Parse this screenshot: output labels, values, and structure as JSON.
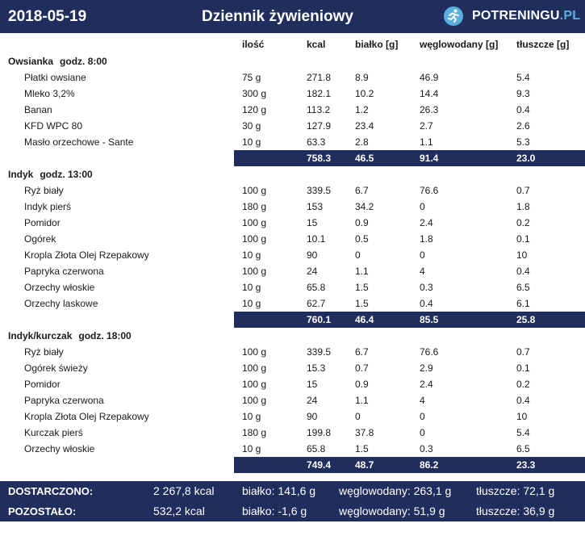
{
  "header": {
    "date": "2018-05-19",
    "title": "Dziennik żywieniowy",
    "logo_main": "POTRENINGU",
    "logo_suffix": ".PL"
  },
  "columns": [
    "ilość",
    "kcal",
    "białko [g]",
    "węglowodany [g]",
    "tłuszcze [g]"
  ],
  "meals": [
    {
      "name": "Owsianka",
      "time": "godz. 8:00",
      "items": [
        {
          "name": "Płatki owsiane",
          "qty": "75 g",
          "kcal": "271.8",
          "protein": "8.9",
          "carbs": "46.9",
          "fat": "5.4"
        },
        {
          "name": "Mleko  3,2%",
          "qty": "300 g",
          "kcal": "182.1",
          "protein": "10.2",
          "carbs": "14.4",
          "fat": "9.3"
        },
        {
          "name": "Banan",
          "qty": "120 g",
          "kcal": "113.2",
          "protein": "1.2",
          "carbs": "26.3",
          "fat": "0.4"
        },
        {
          "name": "KFD WPC 80",
          "qty": "30 g",
          "kcal": "127.9",
          "protein": "23.4",
          "carbs": "2.7",
          "fat": "2.6"
        },
        {
          "name": "Masło orzechowe - Sante",
          "qty": "10 g",
          "kcal": "63.3",
          "protein": "2.8",
          "carbs": "1.1",
          "fat": "5.3"
        }
      ],
      "totals": {
        "kcal": "758.3",
        "protein": "46.5",
        "carbs": "91.4",
        "fat": "23.0"
      }
    },
    {
      "name": "Indyk",
      "time": "godz. 13:00",
      "items": [
        {
          "name": "Ryż biały",
          "qty": "100 g",
          "kcal": "339.5",
          "protein": "6.7",
          "carbs": "76.6",
          "fat": "0.7"
        },
        {
          "name": "Indyk pierś",
          "qty": "180 g",
          "kcal": "153",
          "protein": "34.2",
          "carbs": "0",
          "fat": "1.8"
        },
        {
          "name": "Pomidor",
          "qty": "100 g",
          "kcal": "15",
          "protein": "0.9",
          "carbs": "2.4",
          "fat": "0.2"
        },
        {
          "name": "Ogórek",
          "qty": "100 g",
          "kcal": "10.1",
          "protein": "0.5",
          "carbs": "1.8",
          "fat": "0.1"
        },
        {
          "name": "Kropla Złota Olej Rzepakowy",
          "qty": "10 g",
          "kcal": "90",
          "protein": "0",
          "carbs": "0",
          "fat": "10"
        },
        {
          "name": "Papryka czerwona",
          "qty": "100 g",
          "kcal": "24",
          "protein": "1.1",
          "carbs": "4",
          "fat": "0.4"
        },
        {
          "name": "Orzechy włoskie",
          "qty": "10 g",
          "kcal": "65.8",
          "protein": "1.5",
          "carbs": "0.3",
          "fat": "6.5"
        },
        {
          "name": "Orzechy laskowe",
          "qty": "10 g",
          "kcal": "62.7",
          "protein": "1.5",
          "carbs": "0.4",
          "fat": "6.1"
        }
      ],
      "totals": {
        "kcal": "760.1",
        "protein": "46.4",
        "carbs": "85.5",
        "fat": "25.8"
      }
    },
    {
      "name": "Indyk/kurczak",
      "time": "godz. 18:00",
      "items": [
        {
          "name": "Ryż biały",
          "qty": "100 g",
          "kcal": "339.5",
          "protein": "6.7",
          "carbs": "76.6",
          "fat": "0.7"
        },
        {
          "name": "Ogórek świeży",
          "qty": "100 g",
          "kcal": "15.3",
          "protein": "0.7",
          "carbs": "2.9",
          "fat": "0.1"
        },
        {
          "name": "Pomidor",
          "qty": "100 g",
          "kcal": "15",
          "protein": "0.9",
          "carbs": "2.4",
          "fat": "0.2"
        },
        {
          "name": "Papryka czerwona",
          "qty": "100 g",
          "kcal": "24",
          "protein": "1.1",
          "carbs": "4",
          "fat": "0.4"
        },
        {
          "name": "Kropla Złota Olej Rzepakowy",
          "qty": "10 g",
          "kcal": "90",
          "protein": "0",
          "carbs": "0",
          "fat": "10"
        },
        {
          "name": "Kurczak pierś",
          "qty": "180 g",
          "kcal": "199.8",
          "protein": "37.8",
          "carbs": "0",
          "fat": "5.4"
        },
        {
          "name": "Orzechy włoskie",
          "qty": "10 g",
          "kcal": "65.8",
          "protein": "1.5",
          "carbs": "0.3",
          "fat": "6.5"
        }
      ],
      "totals": {
        "kcal": "749.4",
        "protein": "48.7",
        "carbs": "86.2",
        "fat": "23.3"
      }
    }
  ],
  "summary": [
    {
      "label": "DOSTARCZONO:",
      "kcal": "2 267,8 kcal",
      "protein": "białko: 141,6 g",
      "carbs": "węglowodany: 263,1 g",
      "fat": "tłuszcze: 72,1 g"
    },
    {
      "label": "POZOSTAŁO:",
      "kcal": "532,2 kcal",
      "protein": "białko: -1,6 g",
      "carbs": "węglowodany: 51,9 g",
      "fat": "tłuszcze: 36,9 g"
    }
  ],
  "colors": {
    "navy": "#1f2e5c",
    "accent": "#5aaee0"
  }
}
